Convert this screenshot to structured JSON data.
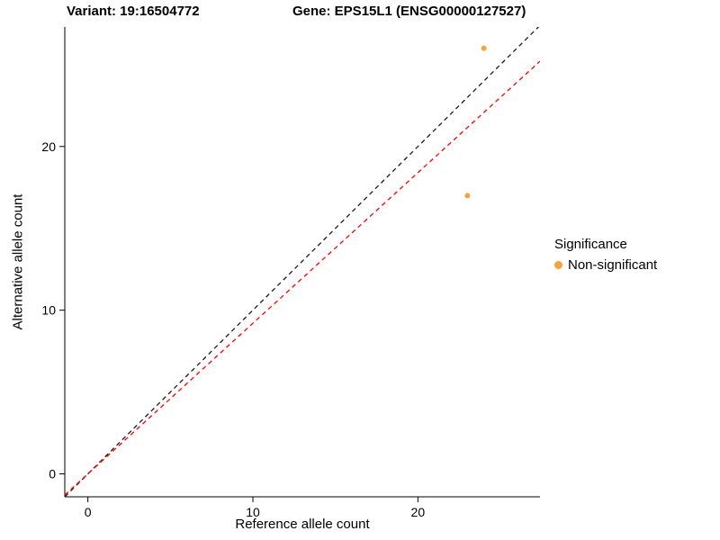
{
  "titles": {
    "left": "Variant: 19:16504772",
    "right": "Gene: EPS15L1 (ENSG00000127527)"
  },
  "chart_data": {
    "type": "scatter",
    "xlabel": "Reference allele count",
    "ylabel": "Alternative allele count",
    "xlim": [
      -1.4,
      27.4
    ],
    "ylim": [
      -1.4,
      27.3
    ],
    "xticks": [
      0,
      10,
      20
    ],
    "yticks": [
      0,
      10,
      20
    ],
    "grid": false,
    "point_color": "#F6A33C",
    "point_radius": 3,
    "points": [
      {
        "x": 24,
        "y": 26,
        "series": "Non-significant"
      },
      {
        "x": 23,
        "y": 17,
        "series": "Non-significant"
      }
    ],
    "lines": [
      {
        "name": "identity-line",
        "slope": 1,
        "intercept": 0,
        "color": "#1a1a1a",
        "dash": "5,4"
      },
      {
        "name": "regression-line",
        "slope": 0.92,
        "intercept": 0,
        "color": "#ff0000",
        "dash": "5,4"
      }
    ],
    "legend": {
      "title": "Significance",
      "position": "right",
      "entries": [
        {
          "label": "Non-significant",
          "color": "#F6A33C"
        }
      ]
    }
  }
}
